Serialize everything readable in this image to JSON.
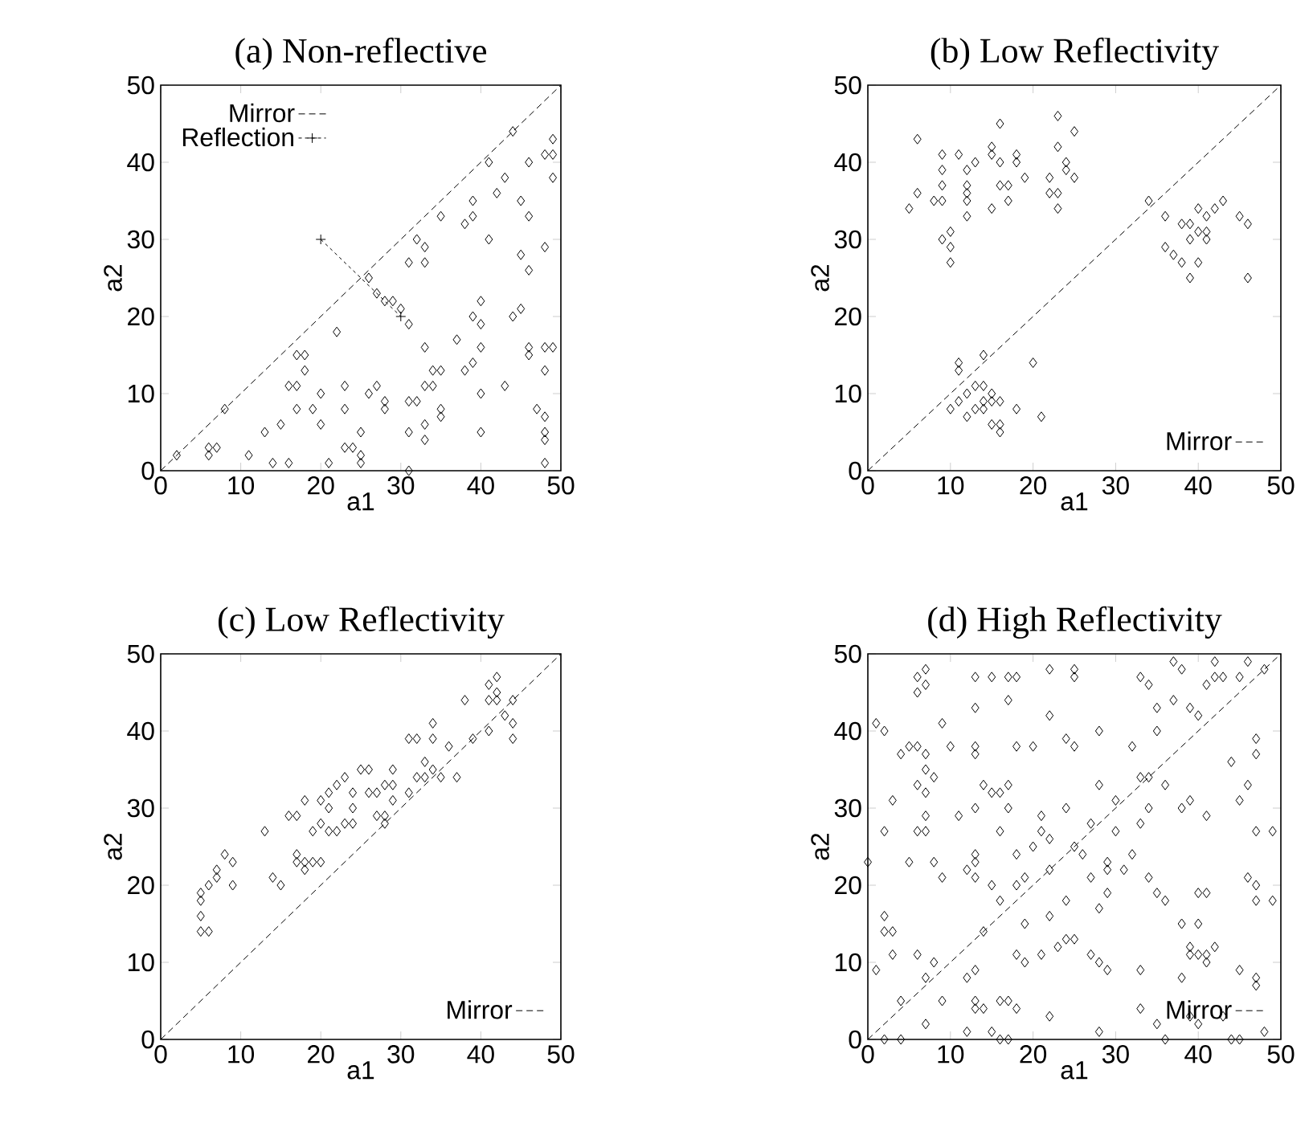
{
  "chart_data": [
    {
      "type": "scatter",
      "title": "(a) Non-reflective",
      "xlabel": "a1",
      "ylabel": "a2",
      "xlim": [
        0,
        50
      ],
      "ylim": [
        0,
        50
      ],
      "xticks": [
        0,
        10,
        20,
        30,
        40,
        50
      ],
      "yticks": [
        0,
        10,
        20,
        30,
        40,
        50
      ],
      "marker": "diamond",
      "legend": "top left",
      "series": [
        {
          "color": "#000000",
          "x": [
            2,
            6,
            7,
            6,
            8,
            11,
            13,
            14,
            16,
            15,
            16,
            17,
            17,
            18,
            18,
            17,
            19,
            20,
            20,
            21,
            22,
            23,
            23,
            23,
            24,
            25,
            25,
            25,
            26,
            27,
            28,
            28,
            26,
            27,
            28,
            29,
            30,
            31,
            31,
            32,
            33,
            33,
            31,
            32,
            31,
            31,
            33,
            33,
            34,
            34,
            35,
            33,
            33,
            35,
            35,
            35,
            37,
            38,
            39,
            38,
            39,
            39,
            40,
            39,
            40,
            40,
            40,
            40,
            41,
            41,
            42,
            43,
            43,
            44,
            45,
            44,
            45,
            46,
            45,
            46,
            46,
            46,
            46,
            48,
            49,
            48,
            47,
            48,
            48,
            48,
            48,
            48,
            48,
            49,
            49,
            49
          ],
          "values": [
            2,
            3,
            3,
            2,
            8,
            2,
            5,
            1,
            1,
            6,
            11,
            11,
            15,
            15,
            13,
            8,
            8,
            10,
            6,
            1,
            18,
            11,
            8,
            3,
            3,
            2,
            5,
            1,
            10,
            11,
            9,
            8,
            25,
            23,
            22,
            22,
            21,
            19,
            27,
            30,
            29,
            27,
            9,
            9,
            5,
            0,
            16,
            11,
            11,
            13,
            13,
            6,
            4,
            8,
            7,
            33,
            17,
            13,
            14,
            32,
            33,
            35,
            22,
            20,
            19,
            16,
            10,
            5,
            30,
            40,
            36,
            38,
            11,
            20,
            21,
            44,
            35,
            33,
            28,
            26,
            40,
            16,
            15,
            16,
            16,
            13,
            8,
            7,
            5,
            4,
            1,
            29,
            41,
            41,
            43,
            38
          ]
        },
        {
          "name": "Mirror",
          "type": "line",
          "marker": "none",
          "line_style": "dashed",
          "color": "#000000",
          "x": [
            0,
            50
          ],
          "values": [
            0,
            50
          ]
        },
        {
          "name": "Reflection",
          "type": "line",
          "marker": "cross",
          "line_style": "dotted",
          "color": "#000000",
          "x": [
            20,
            30
          ],
          "values": [
            30,
            20
          ]
        }
      ]
    },
    {
      "type": "scatter",
      "title": "(b) Low Reflectivity",
      "xlabel": "a1",
      "ylabel": "a2",
      "xlim": [
        0,
        50
      ],
      "ylim": [
        0,
        50
      ],
      "xticks": [
        0,
        10,
        20,
        30,
        40,
        50
      ],
      "yticks": [
        0,
        10,
        20,
        30,
        40,
        50
      ],
      "marker": "diamond",
      "legend": "bottom right",
      "series": [
        {
          "color": "#000000",
          "x": [
            5,
            6,
            6,
            8,
            9,
            9,
            9,
            9,
            9,
            10,
            10,
            10,
            11,
            12,
            12,
            12,
            12,
            13,
            12,
            15,
            15,
            16,
            16,
            15,
            16,
            17,
            17,
            18,
            18,
            19,
            22,
            22,
            23,
            23,
            24,
            24,
            23,
            23,
            25,
            25,
            34,
            36,
            36,
            37,
            38,
            38,
            39,
            40,
            41,
            39,
            41,
            40,
            41,
            42,
            40,
            39,
            43,
            45,
            46,
            46,
            11,
            11,
            14,
            20,
            10,
            11,
            12,
            13,
            14,
            15,
            15,
            16,
            12,
            13,
            14,
            14,
            15,
            16,
            16,
            18,
            21
          ],
          "values": [
            34,
            43,
            36,
            35,
            35,
            37,
            41,
            39,
            30,
            31,
            29,
            27,
            41,
            37,
            36,
            35,
            33,
            40,
            39,
            42,
            41,
            40,
            45,
            34,
            37,
            37,
            35,
            41,
            40,
            38,
            36,
            38,
            42,
            46,
            39,
            40,
            36,
            34,
            44,
            38,
            35,
            33,
            29,
            28,
            27,
            32,
            32,
            31,
            31,
            30,
            30,
            34,
            33,
            34,
            27,
            25,
            35,
            33,
            32,
            25,
            14,
            13,
            15,
            14,
            8,
            9,
            10,
            11,
            11,
            10,
            9,
            9,
            7,
            8,
            8,
            9,
            6,
            6,
            5,
            8,
            7
          ]
        },
        {
          "name": "Mirror",
          "type": "line",
          "marker": "none",
          "line_style": "dashed",
          "color": "#000000",
          "x": [
            0,
            50
          ],
          "values": [
            0,
            50
          ]
        }
      ]
    },
    {
      "type": "scatter",
      "title": "(c) Low Reflectivity",
      "xlabel": "a1",
      "ylabel": "a2",
      "xlim": [
        0,
        50
      ],
      "ylim": [
        0,
        50
      ],
      "xticks": [
        0,
        10,
        20,
        30,
        40,
        50
      ],
      "yticks": [
        0,
        10,
        20,
        30,
        40,
        50
      ],
      "marker": "diamond",
      "legend": "bottom right",
      "series": [
        {
          "color": "#000000",
          "x": [
            5,
            6,
            5,
            5,
            5,
            6,
            7,
            7,
            8,
            9,
            9,
            13,
            14,
            15,
            16,
            17,
            17,
            17,
            18,
            18,
            19,
            20,
            18,
            19,
            20,
            21,
            22,
            23,
            24,
            20,
            21,
            21,
            22,
            23,
            24,
            24,
            25,
            26,
            26,
            27,
            27,
            28,
            28,
            28,
            29,
            29,
            29,
            31,
            32,
            33,
            33,
            34,
            35,
            37,
            31,
            32,
            34,
            34,
            36,
            38,
            39,
            41,
            41,
            42,
            41,
            42,
            42,
            43,
            44,
            44,
            44
          ],
          "values": [
            14,
            14,
            16,
            18,
            19,
            20,
            21,
            22,
            24,
            23,
            20,
            27,
            21,
            20,
            29,
            29,
            24,
            23,
            22,
            23,
            23,
            23,
            31,
            27,
            28,
            27,
            27,
            28,
            28,
            31,
            30,
            32,
            33,
            34,
            32,
            30,
            35,
            35,
            32,
            32,
            29,
            33,
            29,
            28,
            35,
            33,
            31,
            32,
            34,
            36,
            34,
            35,
            34,
            34,
            39,
            39,
            39,
            41,
            38,
            44,
            39,
            40,
            46,
            47,
            44,
            45,
            44,
            42,
            44,
            41,
            39
          ]
        },
        {
          "name": "Mirror",
          "type": "line",
          "marker": "none",
          "line_style": "dashed",
          "color": "#000000",
          "x": [
            0,
            50
          ],
          "values": [
            0,
            50
          ]
        }
      ]
    },
    {
      "type": "scatter",
      "title": "(d) High Reflectivity",
      "xlabel": "a1",
      "ylabel": "a2",
      "xlim": [
        0,
        50
      ],
      "ylim": [
        0,
        50
      ],
      "xticks": [
        0,
        10,
        20,
        30,
        40,
        50
      ],
      "yticks": [
        0,
        10,
        20,
        30,
        40,
        50
      ],
      "marker": "diamond",
      "legend": "bottom right",
      "series": [
        {
          "color": "#000000",
          "x": [
            6,
            7,
            6,
            7,
            13,
            15,
            17,
            18,
            22,
            25,
            25,
            33,
            34,
            37,
            38,
            41,
            42,
            42,
            45,
            46,
            48,
            43,
            13,
            17,
            22,
            35,
            37,
            39,
            40,
            1,
            2,
            9,
            10,
            4,
            5,
            6,
            7,
            13,
            13,
            18,
            20,
            24,
            25,
            28,
            32,
            35,
            44,
            47,
            47,
            45,
            46,
            7,
            8,
            6,
            7,
            14,
            15,
            16,
            17,
            17,
            28,
            33,
            34,
            36,
            3,
            30,
            39,
            38,
            11,
            13,
            24,
            34,
            41,
            7,
            6,
            7,
            2,
            21,
            21,
            22,
            16,
            27,
            30,
            33,
            47,
            49,
            0,
            5,
            8,
            9,
            12,
            13,
            13,
            13,
            15,
            16,
            18,
            18,
            19,
            20,
            22,
            25,
            26,
            27,
            29,
            29,
            31,
            32,
            29,
            28,
            24,
            22,
            19,
            34,
            35,
            36,
            40,
            41,
            38,
            40,
            46,
            47,
            47,
            49,
            2,
            2,
            3,
            3,
            1,
            6,
            8,
            7,
            4,
            12,
            13,
            14,
            18,
            16,
            19,
            21,
            23,
            24,
            25,
            22,
            27,
            28,
            29,
            33,
            33,
            28,
            39,
            39,
            40,
            41,
            42,
            38,
            41,
            45,
            47,
            47,
            7,
            2,
            4,
            9,
            12,
            13,
            13,
            14,
            15,
            16,
            17,
            17,
            18,
            35,
            36,
            39,
            40,
            43,
            44,
            45,
            48
          ],
          "values": [
            47,
            48,
            45,
            46,
            47,
            47,
            47,
            47,
            48,
            48,
            47,
            47,
            46,
            49,
            48,
            46,
            47,
            49,
            47,
            49,
            48,
            47,
            43,
            44,
            42,
            43,
            44,
            43,
            42,
            41,
            40,
            41,
            38,
            37,
            38,
            38,
            37,
            38,
            37,
            38,
            38,
            39,
            38,
            40,
            38,
            40,
            36,
            39,
            37,
            31,
            33,
            35,
            34,
            33,
            32,
            33,
            32,
            32,
            33,
            30,
            33,
            34,
            34,
            33,
            31,
            31,
            31,
            30,
            29,
            30,
            30,
            30,
            29,
            29,
            27,
            27,
            27,
            29,
            27,
            26,
            27,
            28,
            27,
            28,
            27,
            27,
            23,
            23,
            23,
            21,
            22,
            24,
            23,
            21,
            20,
            18,
            24,
            20,
            21,
            25,
            22,
            25,
            24,
            21,
            23,
            22,
            22,
            24,
            19,
            17,
            18,
            16,
            15,
            21,
            19,
            18,
            19,
            19,
            15,
            15,
            21,
            20,
            18,
            18,
            16,
            14,
            14,
            11,
            9,
            11,
            10,
            8,
            5,
            8,
            9,
            14,
            11,
            5,
            10,
            11,
            12,
            13,
            13,
            3,
            11,
            10,
            9,
            9,
            4,
            1,
            12,
            11,
            11,
            11,
            12,
            8,
            10,
            9,
            8,
            7,
            2,
            0,
            0,
            5,
            1,
            4,
            5,
            4,
            1,
            0,
            5,
            0,
            4,
            2,
            0,
            3,
            2,
            3,
            0,
            0,
            1
          ]
        },
        {
          "name": "Mirror",
          "type": "line",
          "marker": "none",
          "line_style": "dashed",
          "color": "#000000",
          "x": [
            0,
            50
          ],
          "values": [
            0,
            50
          ]
        }
      ]
    }
  ]
}
